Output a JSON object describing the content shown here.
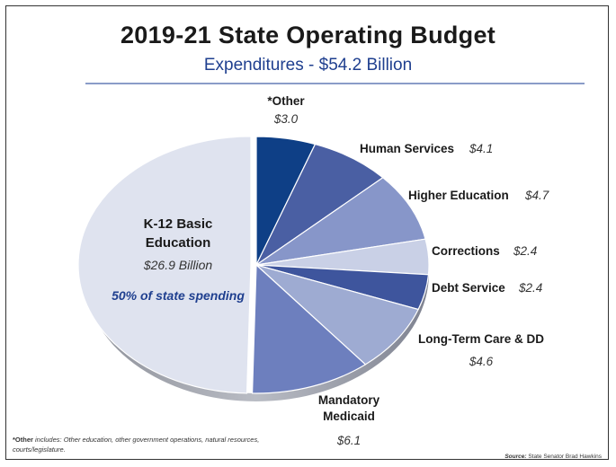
{
  "chart_data": {
    "type": "pie",
    "title": "2019-21 State Operating Budget",
    "subtitle": "Expenditures - $54.2 Billion",
    "slices": [
      {
        "label": "*Other",
        "display_value": "$3.0",
        "value": 3.0,
        "color": "#0e3f86"
      },
      {
        "label": "Human Services",
        "display_value": "$4.1",
        "value": 4.1,
        "color": "#4a5fa3"
      },
      {
        "label": "Higher Education",
        "display_value": "$4.7",
        "value": 4.7,
        "color": "#8796c9"
      },
      {
        "label": "Corrections",
        "display_value": "$2.4",
        "value": 2.4,
        "color": "#c9d0e6"
      },
      {
        "label": "Debt Service",
        "display_value": "$2.4",
        "value": 2.4,
        "color": "#3e559d"
      },
      {
        "label": "Long-Term Care & DD",
        "display_value": "$4.6",
        "value": 4.6,
        "color": "#9eabd2"
      },
      {
        "label": "Mandatory Medicaid",
        "display_value": "$6.1",
        "value": 6.1,
        "color": "#6d7fbe"
      },
      {
        "label": "K-12 Basic Education",
        "display_value": "$26.9 Billion",
        "value": 26.9,
        "color": "#dfe3ef",
        "annotation": "50% of state spending"
      }
    ]
  },
  "labels": {
    "other_name": "*Other",
    "other_value": "$3.0",
    "human_name": "Human Services",
    "human_value": "$4.1",
    "higher_name": "Higher Education",
    "higher_value": "$4.7",
    "corrections_name": "Corrections",
    "corrections_value": "$2.4",
    "debt_name": "Debt Service",
    "debt_value": "$2.4",
    "ltc_name": "Long-Term Care & DD",
    "ltc_value": "$4.6",
    "medicaid_line1": "Mandatory",
    "medicaid_line2": "Medicaid",
    "medicaid_value": "$6.1",
    "k12_line1": "K-12 Basic",
    "k12_line2": "Education",
    "k12_value": "$26.9 Billion",
    "k12_share": "50% of state spending"
  },
  "footnote": {
    "label": "*Other",
    "text": " includes: Other education, other government operations, natural resources, courts/legislature."
  },
  "source": {
    "label": "Source:",
    "text": " State Senator Brad Hawkins"
  }
}
